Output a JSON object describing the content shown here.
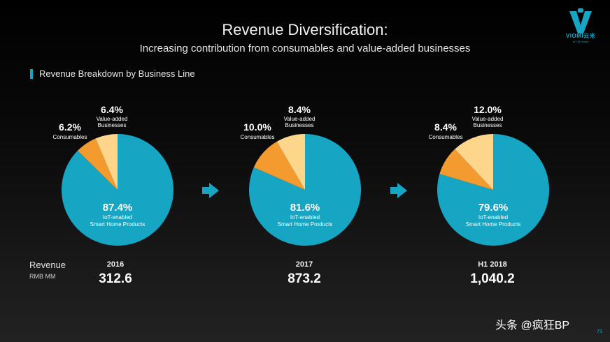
{
  "header": {
    "title": "Revenue Diversification:",
    "subtitle": "Increasing contribution from consumables and value-added businesses"
  },
  "logo": {
    "brand": "VIOMI云米",
    "tagline": "IoT @ Home"
  },
  "section_title": "Revenue Breakdown by Business Line",
  "colors": {
    "iot": "#16a6c4",
    "consumables": "#f39b2f",
    "value_added": "#fdd58b",
    "accent": "#16a6c4"
  },
  "chart_data": [
    {
      "type": "pie",
      "title": "2016",
      "slices": [
        {
          "label": "IoT-enabled Smart Home Products",
          "value": 87.4,
          "display": "87.4%"
        },
        {
          "label": "Consumables",
          "value": 6.2,
          "display": "6.2%"
        },
        {
          "label": "Value-added Businesses",
          "value": 6.4,
          "display": "6.4%"
        }
      ],
      "revenue": "312.6"
    },
    {
      "type": "pie",
      "title": "2017",
      "slices": [
        {
          "label": "IoT-enabled Smart Home Products",
          "value": 81.6,
          "display": "81.6%"
        },
        {
          "label": "Consumables",
          "value": 10.0,
          "display": "10.0%"
        },
        {
          "label": "Value-added Businesses",
          "value": 8.4,
          "display": "8.4%"
        }
      ],
      "revenue": "873.2"
    },
    {
      "type": "pie",
      "title": "H1 2018",
      "slices": [
        {
          "label": "IoT-enabled Smart Home Products",
          "value": 79.6,
          "display": "79.6%"
        },
        {
          "label": "Consumables",
          "value": 8.4,
          "display": "8.4%"
        },
        {
          "label": "Value-added Businesses",
          "value": 12.0,
          "display": "12.0%"
        }
      ],
      "revenue": "1,040.2"
    }
  ],
  "labels": {
    "iot_line1": "IoT-enabled",
    "iot_line2": "Smart Home Products",
    "consumables": "Consumables",
    "va_line1": "Value-added",
    "va_line2": "Businesses"
  },
  "revenue_row": {
    "label": "Revenue",
    "unit": "RMB MM"
  },
  "footer": {
    "watermark": "头条 @疯狂BP",
    "page_number": "73"
  }
}
